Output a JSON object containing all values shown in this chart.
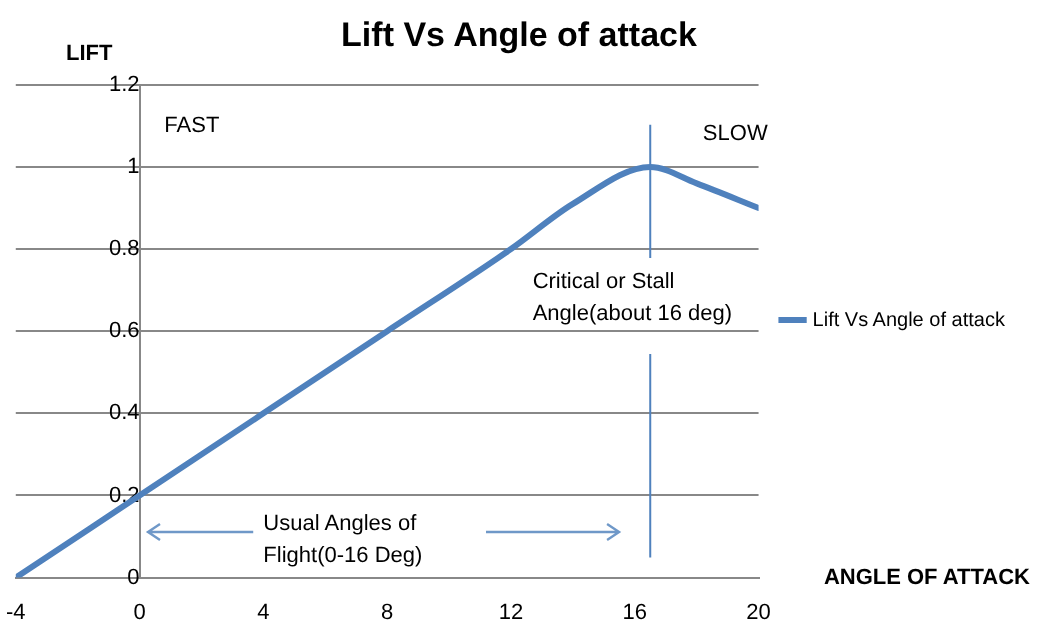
{
  "chart_data": {
    "type": "line",
    "title": "Lift Vs Angle of attack",
    "xlabel": "ANGLE OF ATTACK",
    "ylabel": "LIFT",
    "x": [
      -4,
      0,
      4,
      8,
      12,
      14,
      16.5,
      18,
      20
    ],
    "series": [
      {
        "name": "Lift Vs Angle of attack",
        "color": "#4f81bd",
        "values": [
          0,
          0.2,
          0.4,
          0.6,
          0.8,
          0.91,
          1.0,
          0.96,
          0.9
        ]
      }
    ],
    "xlim": [
      -4,
      20
    ],
    "xticks": [
      -4,
      0,
      4,
      8,
      12,
      16,
      20
    ],
    "ylim": [
      0,
      1.2
    ],
    "yticks": [
      0,
      0.2,
      0.4,
      0.6,
      0.8,
      1,
      1.2
    ],
    "grid": "y",
    "legend": "right",
    "marker": "none",
    "line_style": "solid",
    "ref_lines": [
      {
        "axis": "x",
        "value": 16.5,
        "label": "Critical or Stall Angle(about 16 deg)",
        "color": "#4f81bd"
      }
    ],
    "annotations": [
      "FAST",
      "SLOW",
      "Usual Angles of Flight(0-16 Deg)"
    ]
  }
}
